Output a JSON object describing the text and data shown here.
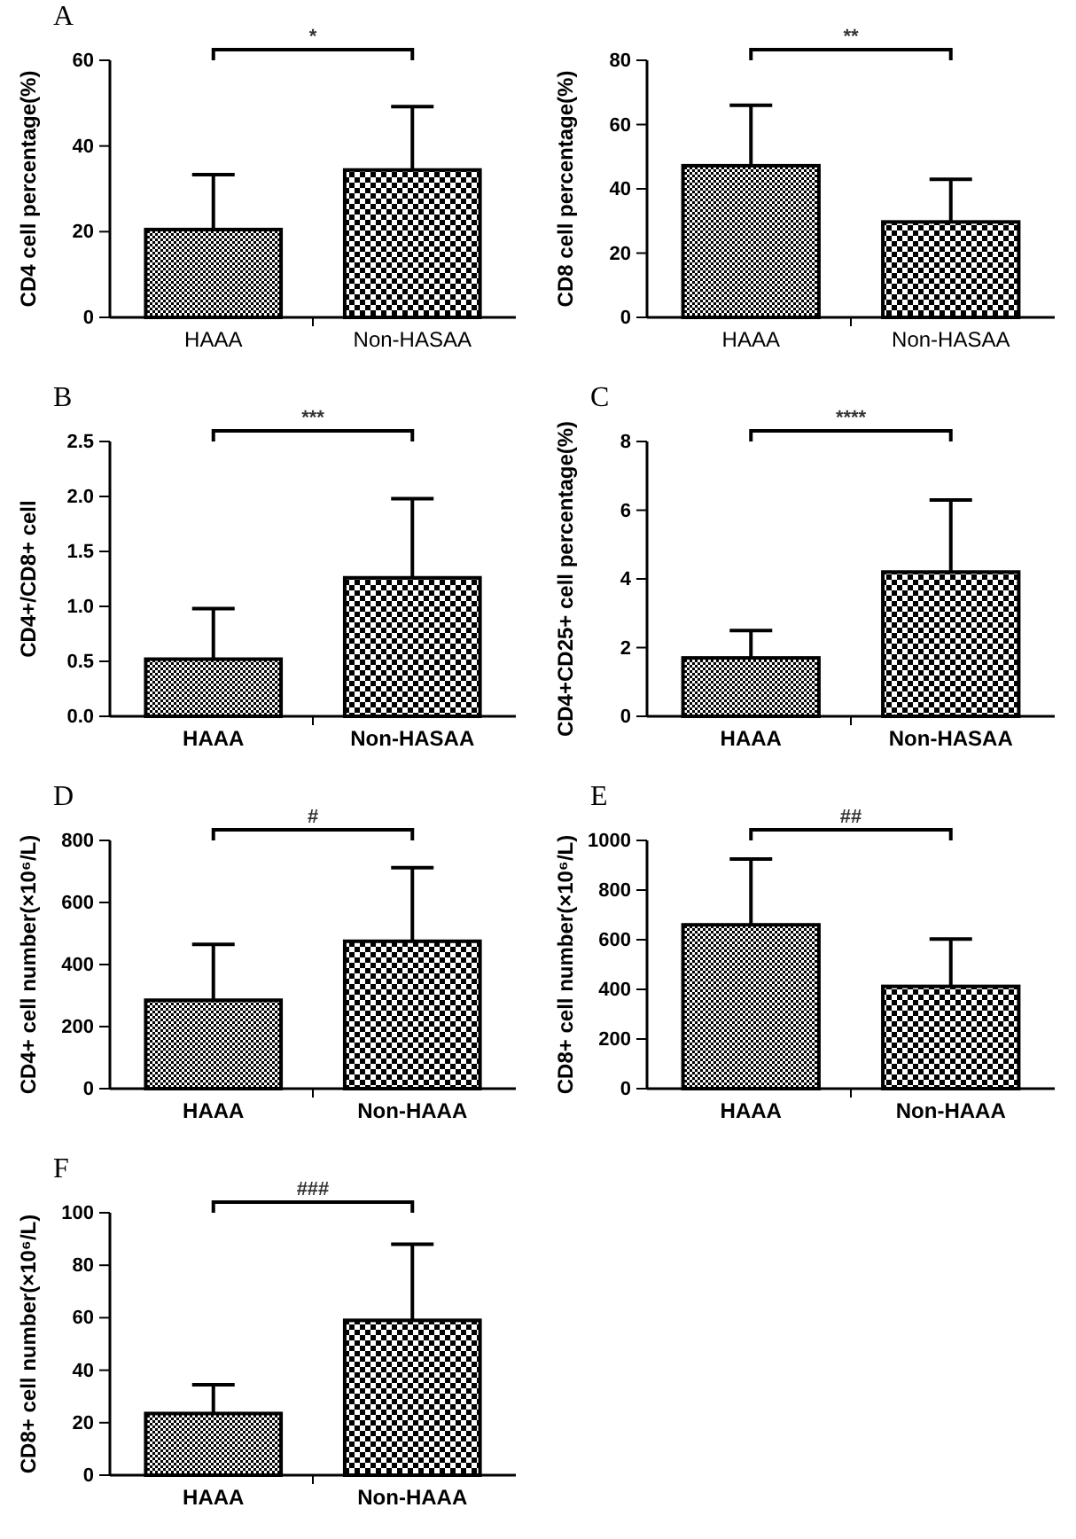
{
  "chart_data": [
    {
      "type": "bar",
      "title": "A",
      "categories": [
        "HAAA",
        "Non-HASAA"
      ],
      "values": [
        20.5,
        34.4
      ],
      "errors": [
        [
          20.5,
          33.3
        ],
        [
          34.4,
          49.2
        ]
      ],
      "colors": [
        "#000000",
        "#000000"
      ],
      "ylabel": "CD4 cell percentage(%)",
      "ylim": [
        0,
        60
      ],
      "yticks": [
        0,
        20,
        40,
        60
      ],
      "annotations": [
        "*"
      ]
    },
    {
      "type": "bar",
      "categories": [
        "HAAA",
        "Non-HASAA"
      ],
      "values": [
        47.2,
        29.7
      ],
      "errors": [
        [
          47.2,
          66
        ],
        [
          29.7,
          43
        ]
      ],
      "colors": [
        "#000000",
        "#000000"
      ],
      "ylabel": "CD8 cell percentage(%)",
      "ylim": [
        0,
        80
      ],
      "yticks": [
        0,
        20,
        40,
        60,
        80
      ],
      "annotations": [
        "**"
      ]
    },
    {
      "type": "bar",
      "title": "B",
      "categories": [
        "HAAA",
        "Non-HASAA"
      ],
      "values": [
        0.52,
        1.26
      ],
      "errors": [
        [
          0.52,
          0.98
        ],
        [
          1.26,
          1.98
        ]
      ],
      "colors": [
        "#000000",
        "#000000"
      ],
      "ylabel": "CD4+/CD8+ cell",
      "ylim": [
        0,
        2.5
      ],
      "yticks": [
        {
          "value": 0,
          "label": "0.0"
        },
        0.5,
        {
          "value": 1,
          "label": "1.0"
        },
        1.5,
        {
          "value": 2,
          "label": "2.0"
        },
        2.5
      ],
      "annotations": [
        "***"
      ]
    },
    {
      "type": "bar",
      "title": "C",
      "categories": [
        "HAAA",
        "Non-HASAA"
      ],
      "values": [
        1.7,
        4.2
      ],
      "errors": [
        [
          1.7,
          2.5
        ],
        [
          4.2,
          6.3
        ]
      ],
      "colors": [
        "#000000",
        "#000000"
      ],
      "ylabel": "CD4+CD25+ cell percentage(%)",
      "ylim": [
        0,
        8
      ],
      "yticks": [
        0,
        2,
        4,
        6,
        8
      ],
      "annotations": [
        "****"
      ]
    },
    {
      "type": "bar",
      "title": "D",
      "categories": [
        "HAAA",
        "Non-HAAA"
      ],
      "values": [
        285,
        475
      ],
      "errors": [
        [
          285,
          465
        ],
        [
          475,
          712
        ]
      ],
      "colors": [
        "#000000",
        "#000000"
      ],
      "ylabel": "CD4+ cell number(×10⁶/L)",
      "ylim": [
        0,
        800
      ],
      "yticks": [
        0,
        200,
        400,
        600,
        800
      ],
      "annotations": [
        "#"
      ]
    },
    {
      "type": "bar",
      "title": "E",
      "categories": [
        "HAAA",
        "Non-HAAA"
      ],
      "values": [
        660,
        412
      ],
      "errors": [
        [
          660,
          925
        ],
        [
          412,
          603
        ]
      ],
      "colors": [
        "#000000",
        "#000000"
      ],
      "ylabel": "CD8+ cell number(×10⁶/L)",
      "ylim": [
        0,
        1000
      ],
      "yticks": [
        0,
        200,
        400,
        600,
        800,
        1000
      ],
      "annotations": [
        "##"
      ]
    },
    {
      "type": "bar",
      "title": "F",
      "categories": [
        "HAAA",
        "Non-HAAA"
      ],
      "values": [
        23.5,
        59
      ],
      "errors": [
        [
          23.5,
          34.5
        ],
        [
          59,
          88
        ]
      ],
      "colors": [
        "#000000",
        "#000000"
      ],
      "ylabel": "CD8+ cell number(×10⁶/L)",
      "ylim": [
        0,
        100
      ],
      "yticks": [
        0,
        20,
        40,
        60,
        80,
        100
      ],
      "annotations": [
        "###"
      ]
    }
  ]
}
